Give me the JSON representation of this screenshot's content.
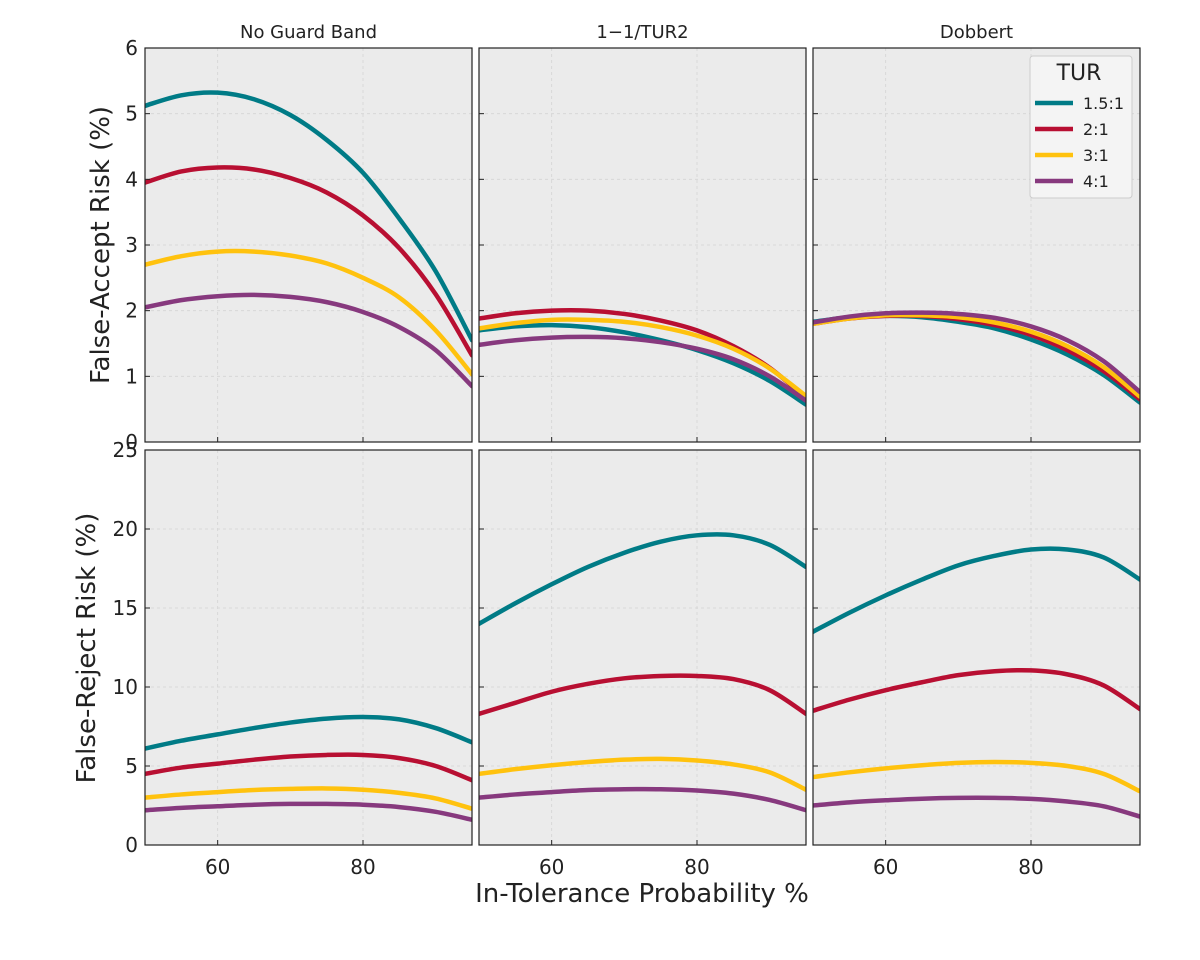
{
  "figure": {
    "xlabel": "In-Tolerance Probability %",
    "ylabel_top": "False-Accept Risk (%)",
    "ylabel_bottom": "False-Reject Risk (%)"
  },
  "legend": {
    "title": "TUR",
    "entries": [
      "1.5:1",
      "2:1",
      "3:1",
      "4:1"
    ],
    "location": "upper-right of top-right panel"
  },
  "colors": {
    "1.5:1": "#007b86",
    "2:1": "#b80f32",
    "3:1": "#ffc20e",
    "4:1": "#87397e",
    "panel_bg": "#ebebeb",
    "grid": "#d4d4d4",
    "axis": "#222222"
  },
  "chart_data": {
    "type": "line",
    "layout": "2 rows x 3 columns, shared x axis",
    "x": [
      50,
      55,
      60,
      65,
      70,
      75,
      80,
      85,
      90,
      95
    ],
    "xlim": [
      50,
      95
    ],
    "xticks": [
      60,
      80
    ],
    "columns": [
      "No Guard Band",
      "1−1/TUR2",
      "Dobbert"
    ],
    "rows": [
      {
        "name": "False-Accept Risk (%)",
        "ylim": [
          0,
          6
        ],
        "yticks": [
          0,
          1,
          2,
          3,
          4,
          5,
          6
        ],
        "panels": [
          {
            "title": "No Guard Band",
            "series": [
              {
                "name": "1.5:1",
                "values": [
                  5.12,
                  5.28,
                  5.32,
                  5.22,
                  4.98,
                  4.6,
                  4.1,
                  3.4,
                  2.6,
                  1.55
                ]
              },
              {
                "name": "2:1",
                "values": [
                  3.95,
                  4.12,
                  4.18,
                  4.15,
                  4.02,
                  3.8,
                  3.45,
                  2.95,
                  2.25,
                  1.32
                ]
              },
              {
                "name": "3:1",
                "values": [
                  2.7,
                  2.83,
                  2.9,
                  2.9,
                  2.84,
                  2.72,
                  2.5,
                  2.2,
                  1.7,
                  1.03
                ]
              },
              {
                "name": "4:1",
                "values": [
                  2.05,
                  2.16,
                  2.22,
                  2.24,
                  2.21,
                  2.13,
                  1.98,
                  1.75,
                  1.4,
                  0.85
                ]
              }
            ]
          },
          {
            "title": "1−1/TUR2",
            "series": [
              {
                "name": "1.5:1",
                "values": [
                  1.7,
                  1.76,
                  1.78,
                  1.75,
                  1.67,
                  1.55,
                  1.4,
                  1.2,
                  0.93,
                  0.57
                ]
              },
              {
                "name": "2:1",
                "values": [
                  1.88,
                  1.96,
                  2.0,
                  2.0,
                  1.95,
                  1.85,
                  1.7,
                  1.46,
                  1.13,
                  0.67
                ]
              },
              {
                "name": "3:1",
                "values": [
                  1.73,
                  1.81,
                  1.86,
                  1.86,
                  1.83,
                  1.75,
                  1.62,
                  1.42,
                  1.12,
                  0.7
                ]
              },
              {
                "name": "4:1",
                "values": [
                  1.48,
                  1.55,
                  1.59,
                  1.6,
                  1.58,
                  1.52,
                  1.42,
                  1.26,
                  1.0,
                  0.63
                ]
              }
            ]
          },
          {
            "title": "Dobbert",
            "series": [
              {
                "name": "1.5:1",
                "values": [
                  1.83,
                  1.9,
                  1.92,
                  1.9,
                  1.83,
                  1.73,
                  1.56,
                  1.33,
                  1.02,
                  0.6
                ]
              },
              {
                "name": "2:1",
                "values": [
                  1.8,
                  1.88,
                  1.92,
                  1.92,
                  1.87,
                  1.78,
                  1.63,
                  1.4,
                  1.08,
                  0.65
                ]
              },
              {
                "name": "3:1",
                "values": [
                  1.8,
                  1.88,
                  1.93,
                  1.93,
                  1.9,
                  1.82,
                  1.68,
                  1.46,
                  1.14,
                  0.69
                ]
              },
              {
                "name": "4:1",
                "values": [
                  1.82,
                  1.91,
                  1.96,
                  1.97,
                  1.95,
                  1.89,
                  1.76,
                  1.55,
                  1.23,
                  0.76
                ]
              }
            ]
          }
        ]
      },
      {
        "name": "False-Reject Risk (%)",
        "ylim": [
          0,
          25
        ],
        "yticks": [
          0,
          5,
          10,
          15,
          20,
          25
        ],
        "panels": [
          {
            "title": "No Guard Band",
            "series": [
              {
                "name": "1.5:1",
                "values": [
                  6.1,
                  6.6,
                  7.0,
                  7.4,
                  7.75,
                  8.0,
                  8.1,
                  7.95,
                  7.4,
                  6.5
                ]
              },
              {
                "name": "2:1",
                "values": [
                  4.5,
                  4.9,
                  5.15,
                  5.4,
                  5.6,
                  5.7,
                  5.7,
                  5.5,
                  5.0,
                  4.1
                ]
              },
              {
                "name": "3:1",
                "values": [
                  3.0,
                  3.2,
                  3.35,
                  3.48,
                  3.55,
                  3.58,
                  3.5,
                  3.3,
                  2.95,
                  2.3
                ]
              },
              {
                "name": "4:1",
                "values": [
                  2.2,
                  2.35,
                  2.45,
                  2.55,
                  2.6,
                  2.6,
                  2.55,
                  2.4,
                  2.1,
                  1.6
                ]
              }
            ]
          },
          {
            "title": "1−1/TUR2",
            "series": [
              {
                "name": "1.5:1",
                "values": [
                  14.0,
                  15.3,
                  16.5,
                  17.6,
                  18.5,
                  19.2,
                  19.6,
                  19.6,
                  19.0,
                  17.6
                ]
              },
              {
                "name": "2:1",
                "values": [
                  8.3,
                  9.0,
                  9.7,
                  10.2,
                  10.55,
                  10.7,
                  10.7,
                  10.5,
                  9.8,
                  8.3
                ]
              },
              {
                "name": "3:1",
                "values": [
                  4.5,
                  4.8,
                  5.05,
                  5.25,
                  5.4,
                  5.45,
                  5.35,
                  5.1,
                  4.6,
                  3.5
                ]
              },
              {
                "name": "4:1",
                "values": [
                  3.0,
                  3.2,
                  3.35,
                  3.48,
                  3.53,
                  3.53,
                  3.45,
                  3.25,
                  2.85,
                  2.2
                ]
              }
            ]
          },
          {
            "title": "Dobbert",
            "series": [
              {
                "name": "1.5:1",
                "values": [
                  13.5,
                  14.7,
                  15.8,
                  16.8,
                  17.7,
                  18.3,
                  18.7,
                  18.7,
                  18.2,
                  16.8
                ]
              },
              {
                "name": "2:1",
                "values": [
                  8.5,
                  9.2,
                  9.8,
                  10.3,
                  10.75,
                  11.0,
                  11.05,
                  10.8,
                  10.1,
                  8.6
                ]
              },
              {
                "name": "3:1",
                "values": [
                  4.3,
                  4.6,
                  4.85,
                  5.05,
                  5.2,
                  5.25,
                  5.2,
                  5.0,
                  4.5,
                  3.4
                ]
              },
              {
                "name": "4:1",
                "values": [
                  2.5,
                  2.7,
                  2.83,
                  2.93,
                  2.98,
                  2.98,
                  2.92,
                  2.75,
                  2.45,
                  1.8
                ]
              }
            ]
          }
        ]
      }
    ]
  }
}
